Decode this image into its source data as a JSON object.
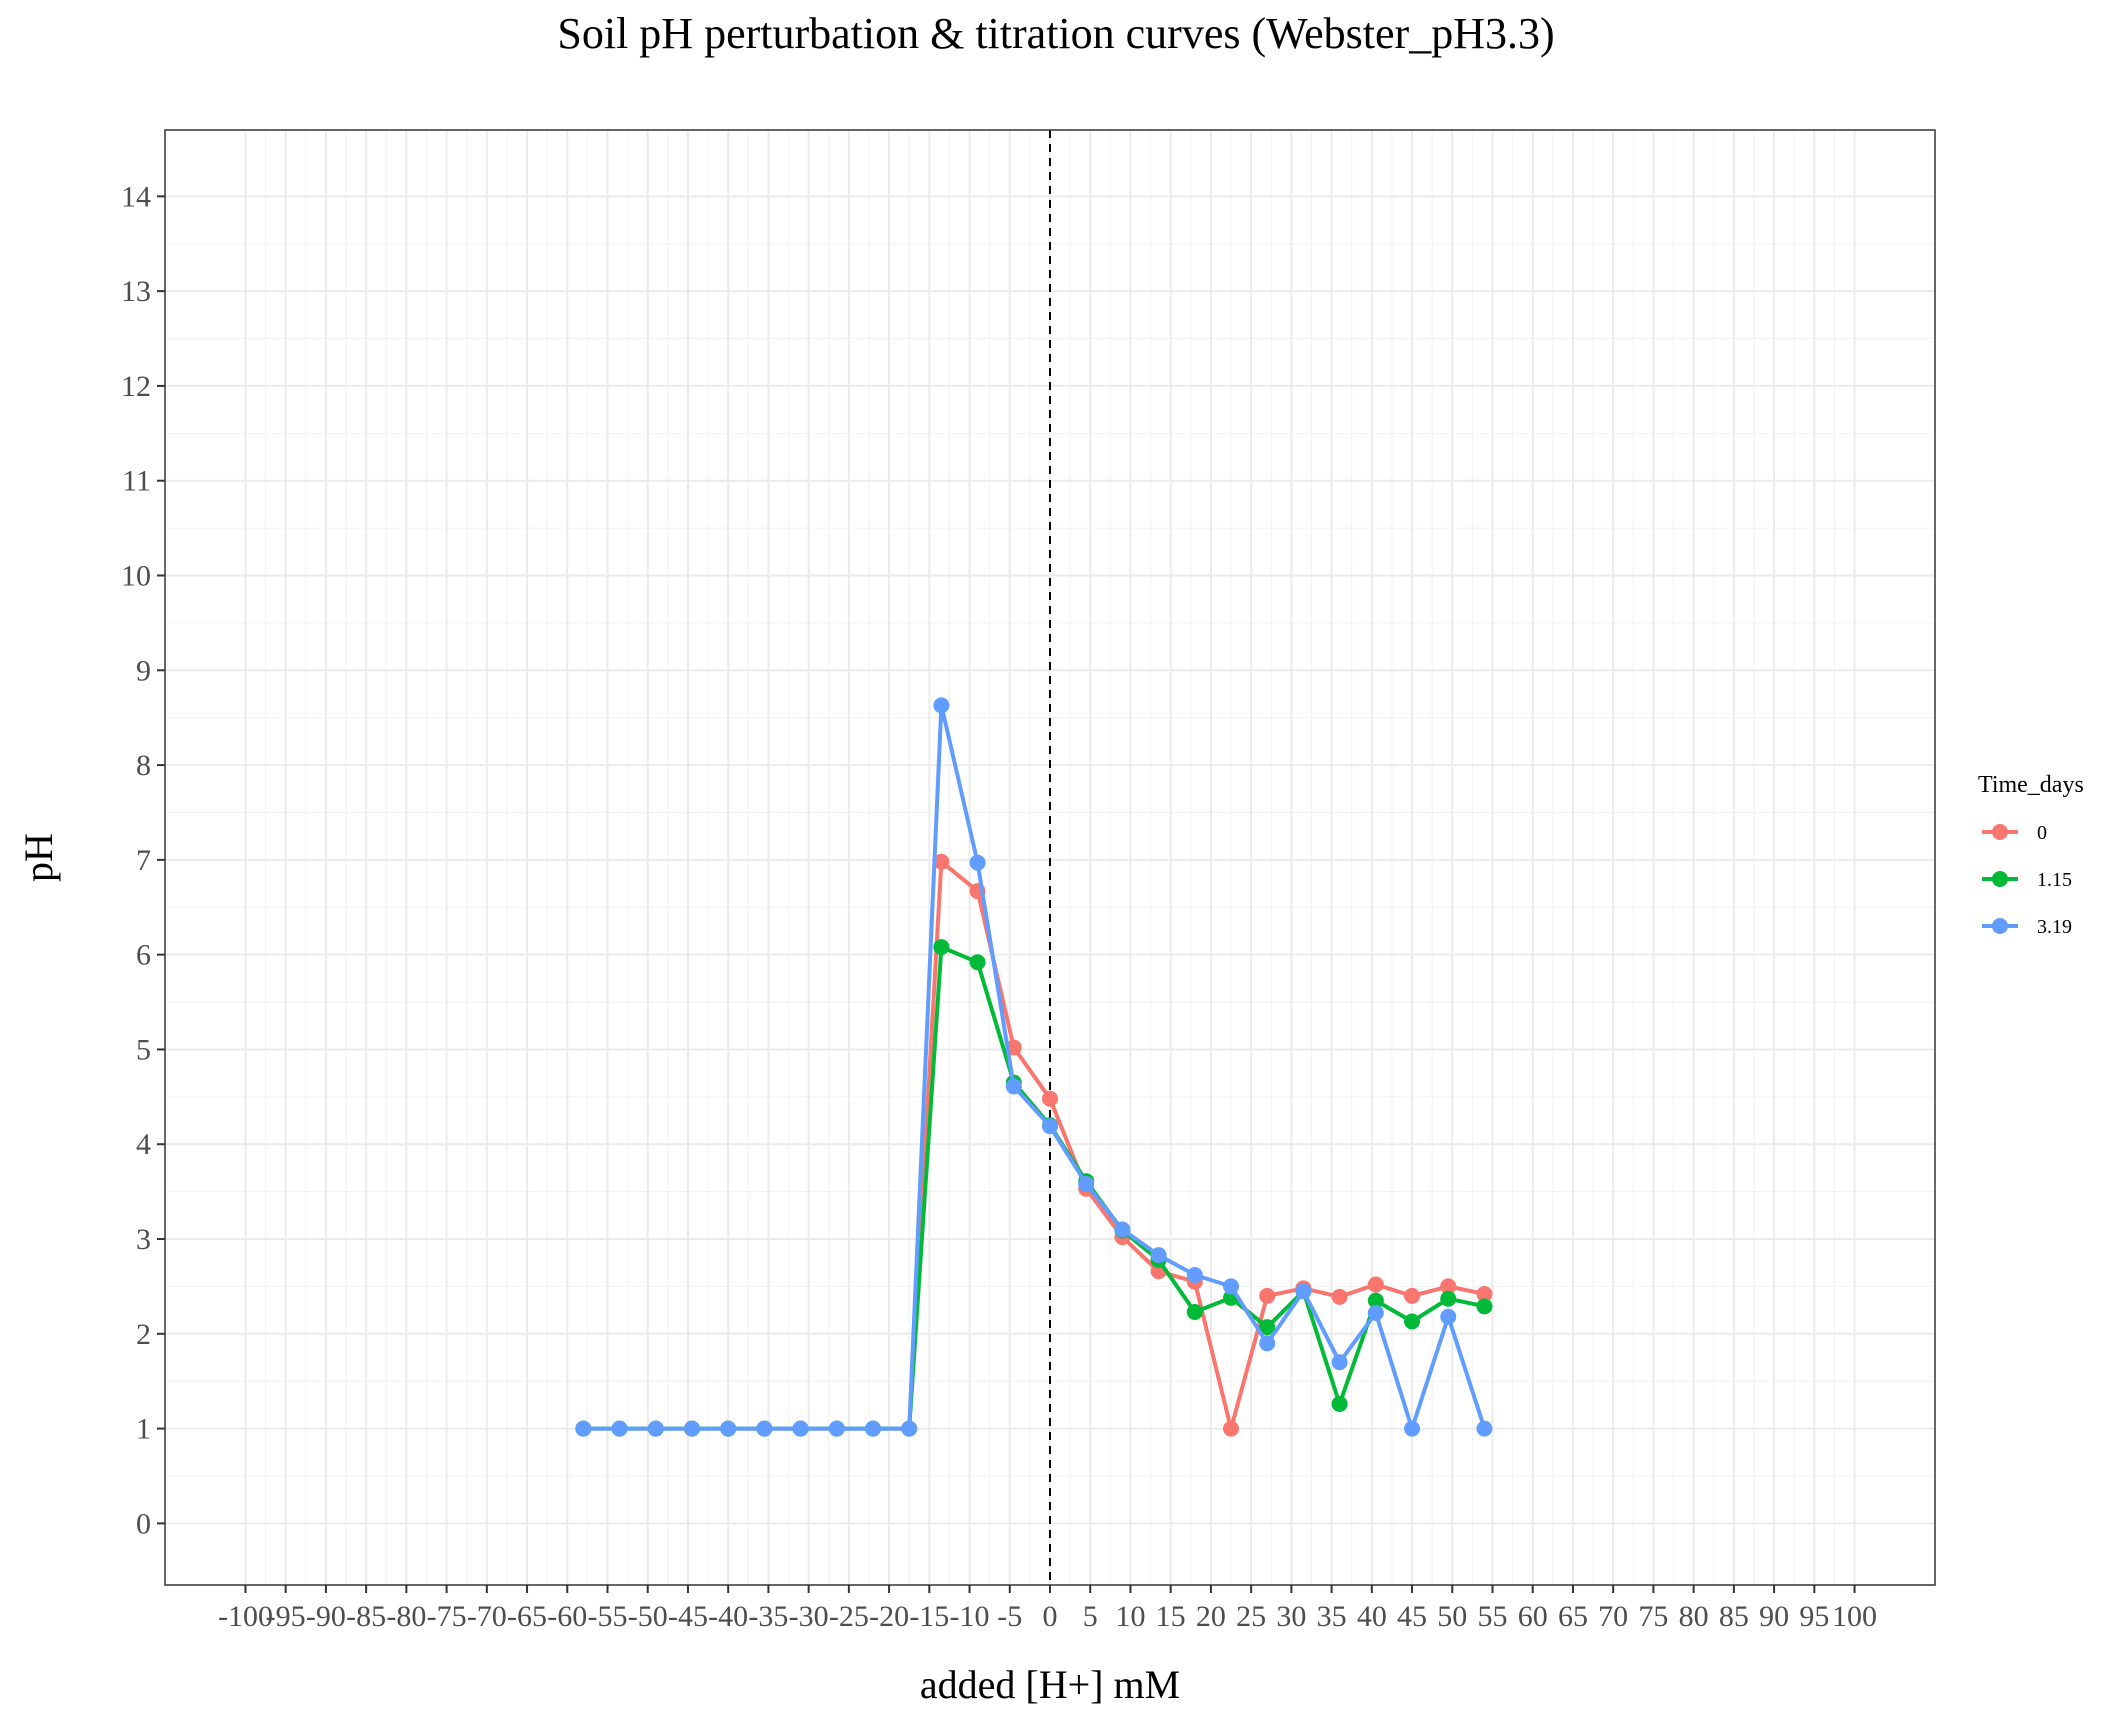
{
  "chart_data": {
    "type": "line",
    "title": "Soil pH perturbation & titration curves (Webster_pH3.3)",
    "xlabel": "added [H+] mM",
    "ylabel": "pH",
    "xlim": [
      -110,
      110
    ],
    "ylim": [
      -0.65,
      14.7
    ],
    "x_ticks": [
      -100,
      -95,
      -90,
      -85,
      -80,
      -75,
      -70,
      -65,
      -60,
      -55,
      -50,
      -45,
      -40,
      -35,
      -30,
      -25,
      -20,
      -15,
      -10,
      -5,
      0,
      5,
      10,
      15,
      20,
      25,
      30,
      35,
      40,
      45,
      50,
      55,
      60,
      65,
      70,
      75,
      80,
      85,
      90,
      95,
      100
    ],
    "y_ticks": [
      0,
      1,
      2,
      3,
      4,
      5,
      6,
      7,
      8,
      9,
      10,
      11,
      12,
      13,
      14
    ],
    "grid": true,
    "reference_line": {
      "x": 0,
      "style": "dashed"
    },
    "legend": {
      "title": "Time_days",
      "position": "right"
    },
    "series": [
      {
        "name": "0",
        "color": "#F8766D",
        "points": [
          [
            -58,
            1
          ],
          [
            -53.5,
            1
          ],
          [
            -49,
            1
          ],
          [
            -44.5,
            1
          ],
          [
            -40,
            1
          ],
          [
            -35.5,
            1
          ],
          [
            -31,
            1
          ],
          [
            -26.5,
            1
          ],
          [
            -22,
            1
          ],
          [
            -17.5,
            1
          ],
          [
            -13.5,
            6.98
          ],
          [
            -9,
            6.67
          ],
          [
            -4.5,
            5.02
          ],
          [
            0,
            4.48
          ],
          [
            4.5,
            3.53
          ],
          [
            9,
            3.02
          ],
          [
            13.5,
            2.66
          ],
          [
            18,
            2.55
          ],
          [
            22.5,
            1
          ],
          [
            27,
            2.4
          ],
          [
            31.5,
            2.48
          ],
          [
            36,
            2.39
          ],
          [
            40.5,
            2.52
          ],
          [
            45,
            2.4
          ],
          [
            49.5,
            2.5
          ],
          [
            54,
            2.42
          ]
        ]
      },
      {
        "name": "1.15",
        "color": "#00BA38",
        "points": [
          [
            -58,
            1
          ],
          [
            -53.5,
            1
          ],
          [
            -49,
            1
          ],
          [
            -44.5,
            1
          ],
          [
            -40,
            1
          ],
          [
            -35.5,
            1
          ],
          [
            -31,
            1
          ],
          [
            -26.5,
            1
          ],
          [
            -22,
            1
          ],
          [
            -17.5,
            1
          ],
          [
            -13.5,
            6.08
          ],
          [
            -9,
            5.92
          ],
          [
            -4.5,
            4.65
          ],
          [
            0,
            4.2
          ],
          [
            4.5,
            3.61
          ],
          [
            9,
            3.09
          ],
          [
            13.5,
            2.78
          ],
          [
            18,
            2.23
          ],
          [
            22.5,
            2.38
          ],
          [
            27,
            2.07
          ],
          [
            31.5,
            2.45
          ],
          [
            36,
            1.26
          ],
          [
            40.5,
            2.35
          ],
          [
            45,
            2.13
          ],
          [
            49.5,
            2.37
          ],
          [
            54,
            2.29
          ]
        ]
      },
      {
        "name": "3.19",
        "color": "#619CFF",
        "points": [
          [
            -58,
            1
          ],
          [
            -53.5,
            1
          ],
          [
            -49,
            1
          ],
          [
            -44.5,
            1
          ],
          [
            -40,
            1
          ],
          [
            -35.5,
            1
          ],
          [
            -31,
            1
          ],
          [
            -26.5,
            1
          ],
          [
            -22,
            1
          ],
          [
            -17.5,
            1
          ],
          [
            -13.5,
            8.63
          ],
          [
            -9,
            6.97
          ],
          [
            -4.5,
            4.61
          ],
          [
            0,
            4.19
          ],
          [
            4.5,
            3.58
          ],
          [
            9,
            3.1
          ],
          [
            13.5,
            2.83
          ],
          [
            18,
            2.62
          ],
          [
            22.5,
            2.5
          ],
          [
            27,
            1.9
          ],
          [
            31.5,
            2.45
          ],
          [
            36,
            1.7
          ],
          [
            40.5,
            2.22
          ],
          [
            45,
            1
          ],
          [
            49.5,
            2.18
          ],
          [
            54,
            1
          ]
        ]
      }
    ]
  }
}
